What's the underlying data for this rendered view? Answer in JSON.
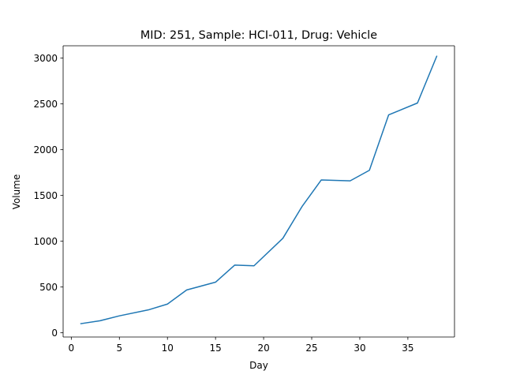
{
  "chart_data": {
    "type": "line",
    "title": "MID: 251, Sample: HCI-011, Drug: Vehicle",
    "xlabel": "Day",
    "ylabel": "Volume",
    "xlim": [
      -0.85,
      39.85
    ],
    "ylim": [
      -46,
      3135
    ],
    "xticks": [
      0,
      5,
      10,
      15,
      20,
      25,
      30,
      35
    ],
    "yticks": [
      0,
      500,
      1000,
      1500,
      2000,
      2500,
      3000
    ],
    "grid": false,
    "series": [
      {
        "color": "#1f77b4",
        "x": [
          1,
          3,
          5,
          8,
          10,
          12,
          15,
          17,
          19,
          22,
          24,
          26,
          29,
          31,
          33,
          36,
          38
        ],
        "y": [
          100,
          132,
          185,
          250,
          314,
          468,
          553,
          740,
          732,
          1032,
          1380,
          1670,
          1660,
          1775,
          2380,
          2510,
          3020
        ]
      }
    ]
  }
}
